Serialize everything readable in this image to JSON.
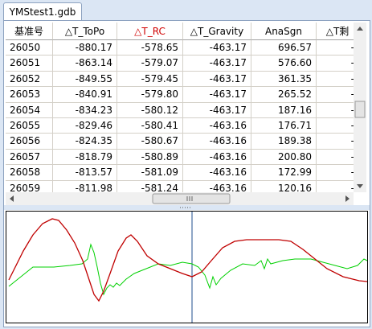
{
  "tab": {
    "title": "YMStest1.gdb"
  },
  "table": {
    "columns": [
      "基准号",
      "△T_ToPo",
      "△T_RC",
      "△T_Gravity",
      "AnaSgn",
      "△T剩"
    ],
    "rows": [
      [
        "26050",
        "-880.17",
        "-578.65",
        "-463.17",
        "696.57",
        "-"
      ],
      [
        "26051",
        "-863.14",
        "-579.07",
        "-463.17",
        "576.60",
        "-"
      ],
      [
        "26052",
        "-849.55",
        "-579.45",
        "-463.17",
        "361.35",
        "-"
      ],
      [
        "26053",
        "-840.91",
        "-579.80",
        "-463.17",
        "265.52",
        "-"
      ],
      [
        "26054",
        "-834.23",
        "-580.12",
        "-463.17",
        "187.16",
        "-"
      ],
      [
        "26055",
        "-829.46",
        "-580.41",
        "-463.16",
        "176.71",
        "-"
      ],
      [
        "26056",
        "-824.35",
        "-580.67",
        "-463.16",
        "189.38",
        "-"
      ],
      [
        "26057",
        "-818.79",
        "-580.89",
        "-463.16",
        "200.80",
        "-"
      ],
      [
        "26058",
        "-813.57",
        "-581.09",
        "-463.16",
        "172.99",
        "-"
      ],
      [
        "26059",
        "-811.98",
        "-581.24",
        "-463.16",
        "120.16",
        "-"
      ]
    ]
  }
}
